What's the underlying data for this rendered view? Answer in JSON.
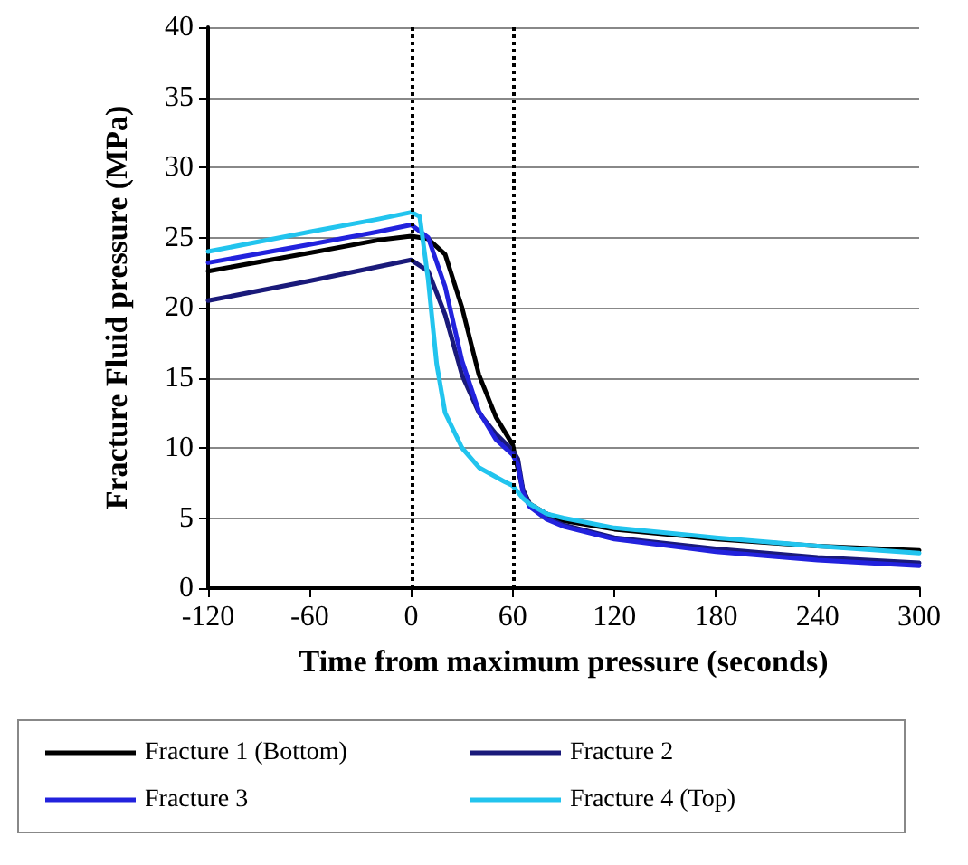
{
  "chart_data": {
    "type": "line",
    "xlabel": "Time from maximum pressure (seconds)",
    "ylabel": "Fracture Fluid pressure (MPa)",
    "xlim": [
      -120,
      300
    ],
    "xticks": [
      -120,
      -60,
      0,
      60,
      120,
      180,
      240,
      300
    ],
    "ylim": [
      0,
      40
    ],
    "yticks": [
      0,
      5,
      10,
      15,
      20,
      25,
      30,
      35,
      40
    ],
    "grid": "y",
    "legend": "bottom",
    "marker": "none",
    "line_style": "solid",
    "ref_lines": [
      {
        "axis": "x",
        "value": 0,
        "line_style": "dotted",
        "color": "#000000"
      },
      {
        "axis": "x",
        "value": 60,
        "line_style": "dotted",
        "color": "#000000"
      }
    ],
    "series": [
      {
        "name": "Fracture 1 (Bottom)",
        "color": "#000000",
        "x": [
          -120,
          -60,
          -20,
          0,
          10,
          20,
          30,
          40,
          50,
          60,
          62,
          66,
          70,
          80,
          90,
          120,
          180,
          240,
          300
        ],
        "values": [
          22.6,
          23.9,
          24.8,
          25.1,
          24.9,
          23.8,
          20,
          15.2,
          12.2,
          10.2,
          9,
          7,
          6,
          5.3,
          4.8,
          4.2,
          3.5,
          3,
          2.7
        ]
      },
      {
        "name": "Fracture 2",
        "color": "#1a1a7a",
        "x": [
          -120,
          -60,
          -20,
          0,
          10,
          20,
          30,
          40,
          50,
          60,
          63,
          66,
          70,
          80,
          90,
          120,
          180,
          240,
          300
        ],
        "values": [
          20.5,
          21.9,
          22.9,
          23.4,
          22.6,
          19.5,
          15.2,
          12.5,
          11,
          9.8,
          9.2,
          7,
          6,
          5,
          4.5,
          3.6,
          2.8,
          2.2,
          1.8
        ]
      },
      {
        "name": "Fracture 3",
        "color": "#2222dd",
        "x": [
          -120,
          -60,
          -20,
          0,
          10,
          20,
          30,
          40,
          50,
          60,
          63,
          66,
          70,
          80,
          90,
          120,
          180,
          240,
          300
        ],
        "values": [
          23.2,
          24.5,
          25.4,
          25.9,
          25,
          21.5,
          16.2,
          12.6,
          10.6,
          9.5,
          8.8,
          6.8,
          5.8,
          4.9,
          4.4,
          3.5,
          2.6,
          2,
          1.6
        ]
      },
      {
        "name": "Fracture 4 (Top)",
        "color": "#22c4ee",
        "x": [
          -120,
          -60,
          -20,
          0,
          5,
          10,
          15,
          20,
          30,
          40,
          55,
          60,
          66,
          70,
          80,
          90,
          120,
          180,
          240,
          300
        ],
        "values": [
          24,
          25.4,
          26.3,
          26.8,
          26.5,
          22,
          16,
          12.5,
          10,
          8.6,
          7.6,
          7.3,
          6.4,
          6,
          5.3,
          5,
          4.3,
          3.6,
          3,
          2.5
        ]
      }
    ]
  }
}
